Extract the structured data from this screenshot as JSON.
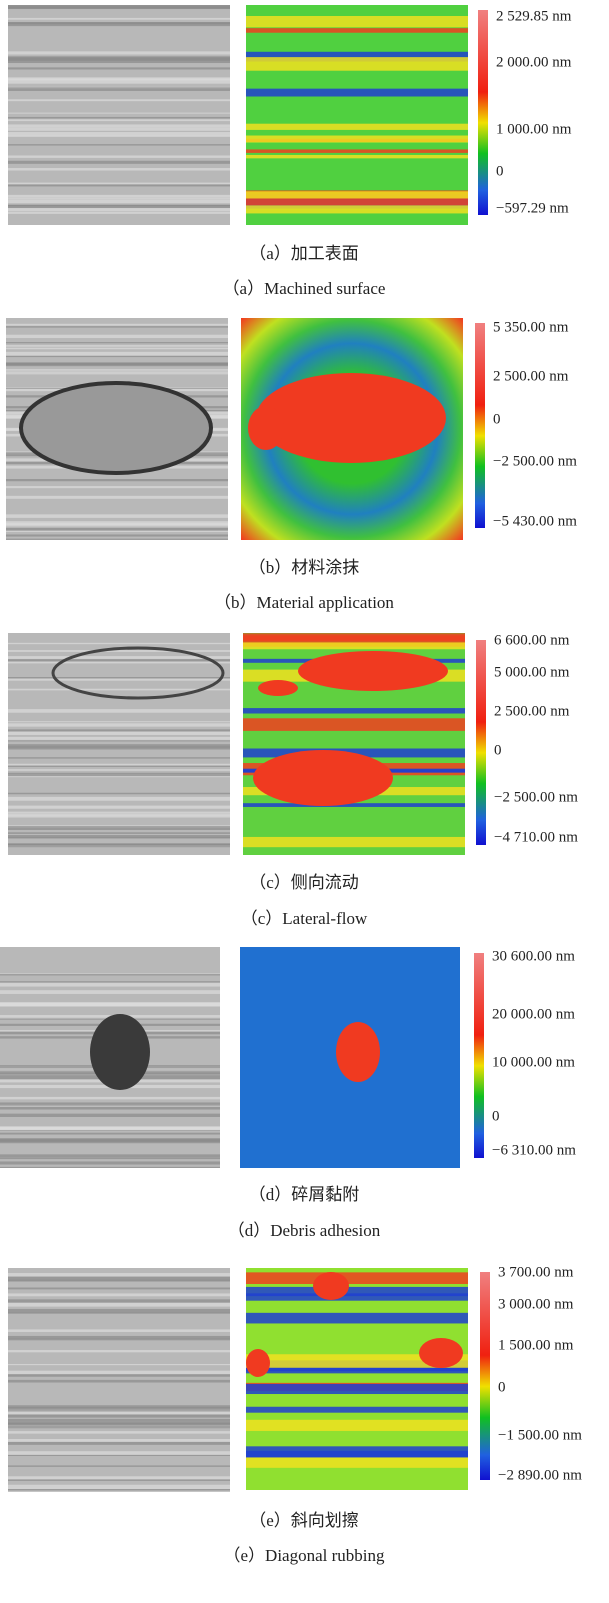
{
  "panels": [
    {
      "caption_zh": "（a）加工表面",
      "caption_en": "（a）Machined surface",
      "colorbar_labels": [
        "2 529.85 nm",
        "2 000.00 nm",
        "1 000.00 nm",
        "0",
        "−597.29 nm"
      ]
    },
    {
      "caption_zh": "（b）材料涂抹",
      "caption_en": "（b）Material application",
      "colorbar_labels": [
        "5 350.00 nm",
        "2 500.00 nm",
        "0",
        "−2 500.00 nm",
        "−5 430.00 nm"
      ]
    },
    {
      "caption_zh": "（c）侧向流动",
      "caption_en": "（c）Lateral-flow",
      "colorbar_labels": [
        "6 600.00 nm",
        "5 000.00 nm",
        "2 500.00 nm",
        "0",
        "−2 500.00 nm",
        "−4 710.00 nm"
      ]
    },
    {
      "caption_zh": "（d）碎屑黏附",
      "caption_en": "（d）Debris adhesion",
      "colorbar_labels": [
        "30 600.00 nm",
        "20 000.00 nm",
        "10 000.00 nm",
        "0",
        "−6 310.00 nm"
      ]
    },
    {
      "caption_zh": "（e）斜向划擦",
      "caption_en": "（e）Diagonal rubbing",
      "colorbar_labels": [
        "3 700.00 nm",
        "3 000.00 nm",
        "1 500.00 nm",
        "0",
        "−1 500.00 nm",
        "−2 890.00 nm"
      ]
    }
  ]
}
